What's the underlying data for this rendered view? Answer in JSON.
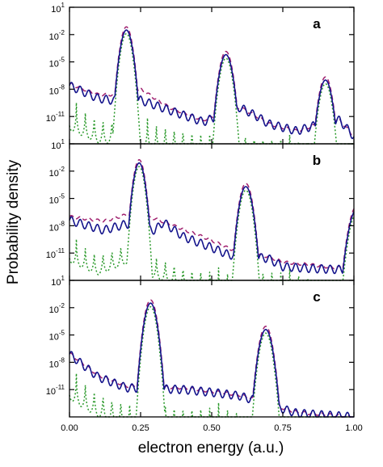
{
  "chart_data": {
    "type": "line",
    "ylabel": "Probability density",
    "xlabel": "electron energy (a.u.)",
    "x_ticks": [
      "0.00",
      "0.25",
      "0.50",
      "0.75",
      "1.00"
    ],
    "xlim": [
      0,
      1
    ],
    "y_scale": "log",
    "y_ticks": [
      {
        "base": "10",
        "exp": "1"
      },
      {
        "base": "10",
        "exp": "-2"
      },
      {
        "base": "10",
        "exp": "-5"
      },
      {
        "base": "10",
        "exp": "-8"
      },
      {
        "base": "10",
        "exp": "-11"
      }
    ],
    "ylim_log10": [
      -14,
      1
    ],
    "line_styles": {
      "solid": {
        "color": "#14148c",
        "dash": "none"
      },
      "dashed": {
        "color": "#a0206e",
        "dash": "6,4"
      },
      "dotted": {
        "color": "#2c9a2c",
        "dash": "2,2.5"
      }
    },
    "panels": [
      {
        "label": "a",
        "peaks": [
          {
            "center": 0.2,
            "log_peak": -1.5,
            "width": 0.032
          },
          {
            "center": 0.55,
            "log_peak": -4.2,
            "width": 0.034
          },
          {
            "center": 0.9,
            "log_peak": -7.0,
            "width": 0.034
          }
        ],
        "solid_bg": [
          [
            0.0,
            -7.6
          ],
          [
            0.1,
            -9.0
          ],
          [
            0.17,
            -9.3
          ],
          [
            0.25,
            -9.2
          ],
          [
            0.35,
            -10.3
          ],
          [
            0.47,
            -11.6
          ],
          [
            0.52,
            -11.0
          ],
          [
            0.6,
            -10.0
          ],
          [
            0.66,
            -11.0
          ],
          [
            0.7,
            -11.8
          ],
          [
            0.8,
            -12.6
          ],
          [
            0.86,
            -12.0
          ],
          [
            0.95,
            -11.4
          ],
          [
            1.0,
            -13.2
          ]
        ],
        "dashed_bg": [
          [
            0.0,
            -7.4
          ],
          [
            0.1,
            -8.6
          ],
          [
            0.17,
            -8.6
          ],
          [
            0.25,
            -8.0
          ],
          [
            0.35,
            -10.0
          ],
          [
            0.47,
            -11.4
          ],
          [
            0.52,
            -10.8
          ],
          [
            0.6,
            -10.0
          ],
          [
            0.66,
            -11.0
          ],
          [
            0.7,
            -11.8
          ],
          [
            0.8,
            -12.6
          ],
          [
            0.86,
            -12.0
          ],
          [
            0.95,
            -11.4
          ],
          [
            1.0,
            -13.2
          ]
        ],
        "dotted_bg": [
          [
            0.0,
            -9.0
          ],
          [
            0.1,
            -10.4
          ],
          [
            0.2,
            -10.5
          ],
          [
            0.3,
            -11.2
          ],
          [
            0.4,
            -11.5
          ],
          [
            0.5,
            -12.2
          ],
          [
            0.6,
            -12.0
          ],
          [
            0.7,
            -12.5
          ],
          [
            0.8,
            -13.0
          ],
          [
            0.9,
            -12.3
          ],
          [
            1.0,
            -13.5
          ]
        ],
        "dotted_dip": 3.5
      },
      {
        "label": "b",
        "peaks": [
          {
            "center": 0.245,
            "log_peak": -1.1,
            "width": 0.03
          },
          {
            "center": 0.62,
            "log_peak": -3.7,
            "width": 0.034
          },
          {
            "center": 1.01,
            "log_peak": -6.2,
            "width": 0.04
          }
        ],
        "solid_bg": [
          [
            0.0,
            -7.4
          ],
          [
            0.12,
            -8.5
          ],
          [
            0.2,
            -7.8
          ],
          [
            0.3,
            -8.5
          ],
          [
            0.33,
            -7.6
          ],
          [
            0.4,
            -9.2
          ],
          [
            0.5,
            -10.4
          ],
          [
            0.56,
            -11.2
          ],
          [
            0.7,
            -11.6
          ],
          [
            0.75,
            -12.5
          ],
          [
            0.85,
            -12.7
          ],
          [
            0.93,
            -12.8
          ]
        ],
        "dashed_bg": [
          [
            0.0,
            -7.0
          ],
          [
            0.12,
            -7.5
          ],
          [
            0.2,
            -6.8
          ],
          [
            0.3,
            -7.2
          ],
          [
            0.4,
            -8.4
          ],
          [
            0.5,
            -9.6
          ],
          [
            0.56,
            -10.5
          ],
          [
            0.7,
            -11.4
          ],
          [
            0.75,
            -12.0
          ],
          [
            0.85,
            -12.3
          ],
          [
            0.93,
            -12.6
          ]
        ],
        "dotted_bg": [
          [
            0.0,
            -9.0
          ],
          [
            0.1,
            -10.4
          ],
          [
            0.2,
            -9.2
          ],
          [
            0.3,
            -10.8
          ],
          [
            0.45,
            -12.2
          ],
          [
            0.55,
            -12.6
          ],
          [
            0.7,
            -12.2
          ],
          [
            0.8,
            -12.8
          ],
          [
            0.93,
            -13.0
          ]
        ],
        "dotted_dip": 3.0
      },
      {
        "label": "c",
        "peaks": [
          {
            "center": 0.285,
            "log_peak": -1.5,
            "width": 0.033
          },
          {
            "center": 0.69,
            "log_peak": -4.4,
            "width": 0.035
          }
        ],
        "solid_bg": [
          [
            0.0,
            -7.1
          ],
          [
            0.1,
            -9.6
          ],
          [
            0.2,
            -10.8
          ],
          [
            0.4,
            -11.0
          ],
          [
            0.5,
            -11.3
          ],
          [
            0.6,
            -11.7
          ],
          [
            0.8,
            -13.6
          ],
          [
            1.0,
            -14.0
          ]
        ],
        "dashed_bg": [
          [
            0.0,
            -7.0
          ],
          [
            0.1,
            -9.4
          ],
          [
            0.2,
            -10.6
          ],
          [
            0.4,
            -10.8
          ],
          [
            0.5,
            -11.2
          ],
          [
            0.6,
            -11.6
          ],
          [
            0.8,
            -13.5
          ],
          [
            1.0,
            -14.0
          ]
        ],
        "dotted_bg": [
          [
            0.0,
            -8.6
          ],
          [
            0.1,
            -10.5
          ],
          [
            0.2,
            -11.6
          ],
          [
            0.4,
            -12.0
          ],
          [
            0.5,
            -12.2
          ],
          [
            0.6,
            -12.6
          ],
          [
            0.8,
            -14.0
          ],
          [
            1.0,
            -14.5
          ]
        ],
        "dotted_dip": 3.5
      }
    ]
  }
}
